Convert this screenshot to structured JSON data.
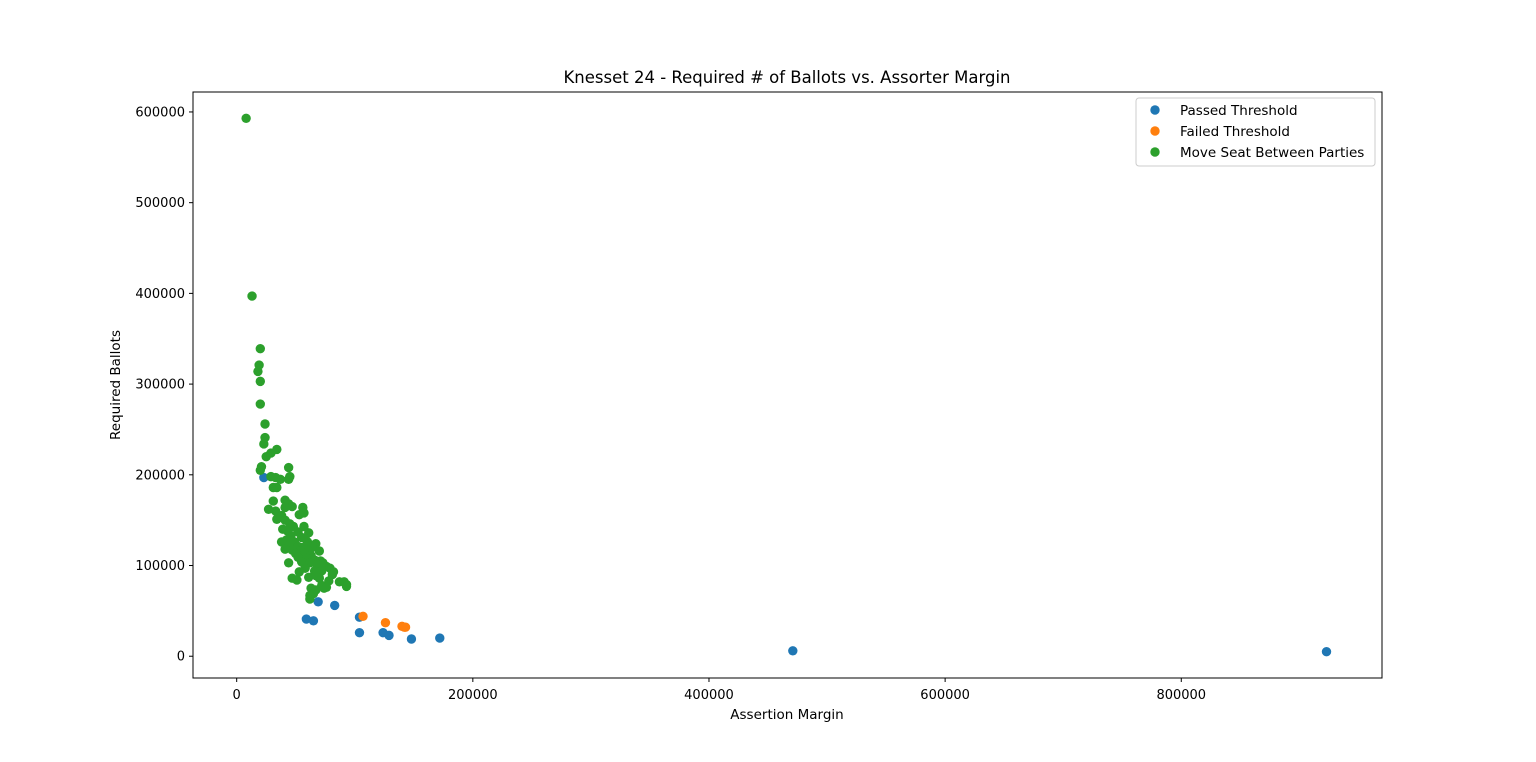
{
  "chart_data": {
    "type": "scatter",
    "title": "Knesset 24 - Required # of Ballots vs. Assorter Margin",
    "xlabel": "Assertion Margin",
    "ylabel": "Required Ballots",
    "xlim": [
      -37000,
      970000
    ],
    "ylim": [
      -24000,
      622000
    ],
    "xticks": [
      0,
      200000,
      400000,
      600000,
      800000
    ],
    "xtick_labels": [
      "0",
      "200000",
      "400000",
      "600000",
      "800000"
    ],
    "yticks": [
      0,
      100000,
      200000,
      300000,
      400000,
      500000,
      600000
    ],
    "ytick_labels": [
      "0",
      "100000",
      "200000",
      "300000",
      "400000",
      "500000",
      "600000"
    ],
    "grid": false,
    "legend_position": "top-right",
    "series": [
      {
        "name": "Passed Threshold",
        "color": "#1f77b4",
        "points": [
          [
            23000,
            197000
          ],
          [
            69000,
            60000
          ],
          [
            83000,
            56000
          ],
          [
            59000,
            41000
          ],
          [
            65000,
            39000
          ],
          [
            104000,
            43000
          ],
          [
            104000,
            26000
          ],
          [
            124000,
            26000
          ],
          [
            129000,
            23000
          ],
          [
            148000,
            19000
          ],
          [
            172000,
            20000
          ],
          [
            471000,
            6000
          ],
          [
            923000,
            5000
          ]
        ]
      },
      {
        "name": "Failed Threshold",
        "color": "#ff7f0e",
        "points": [
          [
            107000,
            44000
          ],
          [
            126000,
            37000
          ],
          [
            140000,
            33000
          ],
          [
            142000,
            32000
          ],
          [
            143000,
            32000
          ]
        ]
      },
      {
        "name": "Move Seat Between Parties",
        "color": "#2ca02c",
        "points": [
          [
            8000,
            593000
          ],
          [
            13000,
            397000
          ],
          [
            20000,
            339000
          ],
          [
            19000,
            321000
          ],
          [
            18000,
            314000
          ],
          [
            20000,
            303000
          ],
          [
            20000,
            278000
          ],
          [
            24000,
            256000
          ],
          [
            24000,
            241000
          ],
          [
            23000,
            234000
          ],
          [
            34000,
            228000
          ],
          [
            29000,
            224000
          ],
          [
            25000,
            220000
          ],
          [
            21000,
            209000
          ],
          [
            20000,
            205000
          ],
          [
            44000,
            208000
          ],
          [
            45000,
            198000
          ],
          [
            44000,
            195000
          ],
          [
            29000,
            198000
          ],
          [
            33000,
            197000
          ],
          [
            37000,
            195000
          ],
          [
            31000,
            186000
          ],
          [
            34000,
            186000
          ],
          [
            27000,
            162000
          ],
          [
            31000,
            171000
          ],
          [
            41000,
            172000
          ],
          [
            44000,
            168000
          ],
          [
            47000,
            165000
          ],
          [
            41000,
            164000
          ],
          [
            56000,
            164000
          ],
          [
            57000,
            158000
          ],
          [
            53000,
            156000
          ],
          [
            33000,
            160000
          ],
          [
            38000,
            155000
          ],
          [
            34000,
            151000
          ],
          [
            41000,
            150000
          ],
          [
            45000,
            146000
          ],
          [
            48000,
            143000
          ],
          [
            57000,
            143000
          ],
          [
            39000,
            140000
          ],
          [
            43000,
            138000
          ],
          [
            52000,
            137000
          ],
          [
            61000,
            136000
          ],
          [
            46000,
            133000
          ],
          [
            55000,
            131000
          ],
          [
            58000,
            130000
          ],
          [
            42000,
            128000
          ],
          [
            38000,
            126000
          ],
          [
            49000,
            126000
          ],
          [
            60000,
            126000
          ],
          [
            67000,
            124000
          ],
          [
            44000,
            122000
          ],
          [
            52000,
            121000
          ],
          [
            56000,
            120000
          ],
          [
            64000,
            120000
          ],
          [
            41000,
            118000
          ],
          [
            47000,
            117000
          ],
          [
            54000,
            116000
          ],
          [
            61000,
            116000
          ],
          [
            70000,
            116000
          ],
          [
            50000,
            113000
          ],
          [
            57000,
            112000
          ],
          [
            63000,
            111000
          ],
          [
            52000,
            109000
          ],
          [
            59000,
            108000
          ],
          [
            66000,
            106000
          ],
          [
            71000,
            105000
          ],
          [
            55000,
            104000
          ],
          [
            44000,
            103000
          ],
          [
            62000,
            103000
          ],
          [
            73000,
            103000
          ],
          [
            68000,
            101000
          ],
          [
            76000,
            99000
          ],
          [
            79000,
            97000
          ],
          [
            58000,
            97000
          ],
          [
            53000,
            93000
          ],
          [
            66000,
            94000
          ],
          [
            72000,
            94000
          ],
          [
            82000,
            93000
          ],
          [
            81000,
            90000
          ],
          [
            67000,
            89000
          ],
          [
            61000,
            87000
          ],
          [
            70000,
            86000
          ],
          [
            47000,
            86000
          ],
          [
            51000,
            84000
          ],
          [
            78000,
            83000
          ],
          [
            87000,
            82000
          ],
          [
            91000,
            82000
          ],
          [
            93000,
            79000
          ],
          [
            93000,
            77000
          ],
          [
            72000,
            78000
          ],
          [
            76000,
            76000
          ],
          [
            74000,
            75000
          ],
          [
            63000,
            75000
          ],
          [
            67000,
            73000
          ],
          [
            65000,
            69000
          ],
          [
            62000,
            67000
          ],
          [
            62000,
            63000
          ]
        ]
      }
    ]
  }
}
